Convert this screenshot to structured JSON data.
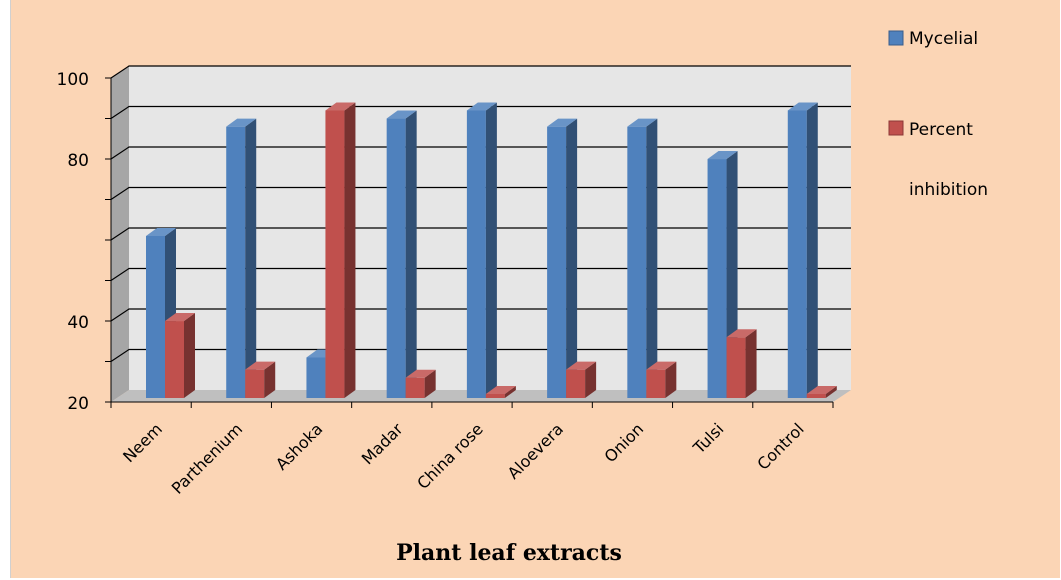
{
  "chart_data": {
    "type": "bar",
    "xlabel": "Plant leaf extracts",
    "ylabel": "",
    "categories": [
      "Neem",
      "Parthenium",
      "Ashoka",
      "Madar",
      "China rose",
      "Aloevera",
      "Onion",
      "Tulsi",
      "Control"
    ],
    "series": [
      {
        "name": "Mycelial",
        "color": "#4f81bd",
        "values": [
          60,
          87,
          30,
          89,
          91,
          87,
          87,
          79,
          91
        ]
      },
      {
        "name": "Percent inhibition",
        "color": "#c0504d",
        "values": [
          39,
          27,
          91,
          25,
          21,
          27,
          27,
          35,
          21
        ]
      }
    ],
    "y_tick_labels": [
      "100",
      "80",
      "40",
      "20"
    ],
    "ylim": [
      20,
      100
    ],
    "grid": true,
    "legend_position": "top-right",
    "legend_lines": [
      "Mycelial",
      "Percent",
      "inhibition"
    ],
    "colors": {
      "background": "#fbd5b5",
      "plot_wall": "#e6e6e6",
      "plot_side": "#a6a6a6",
      "floor": "#bfbfbf"
    }
  }
}
